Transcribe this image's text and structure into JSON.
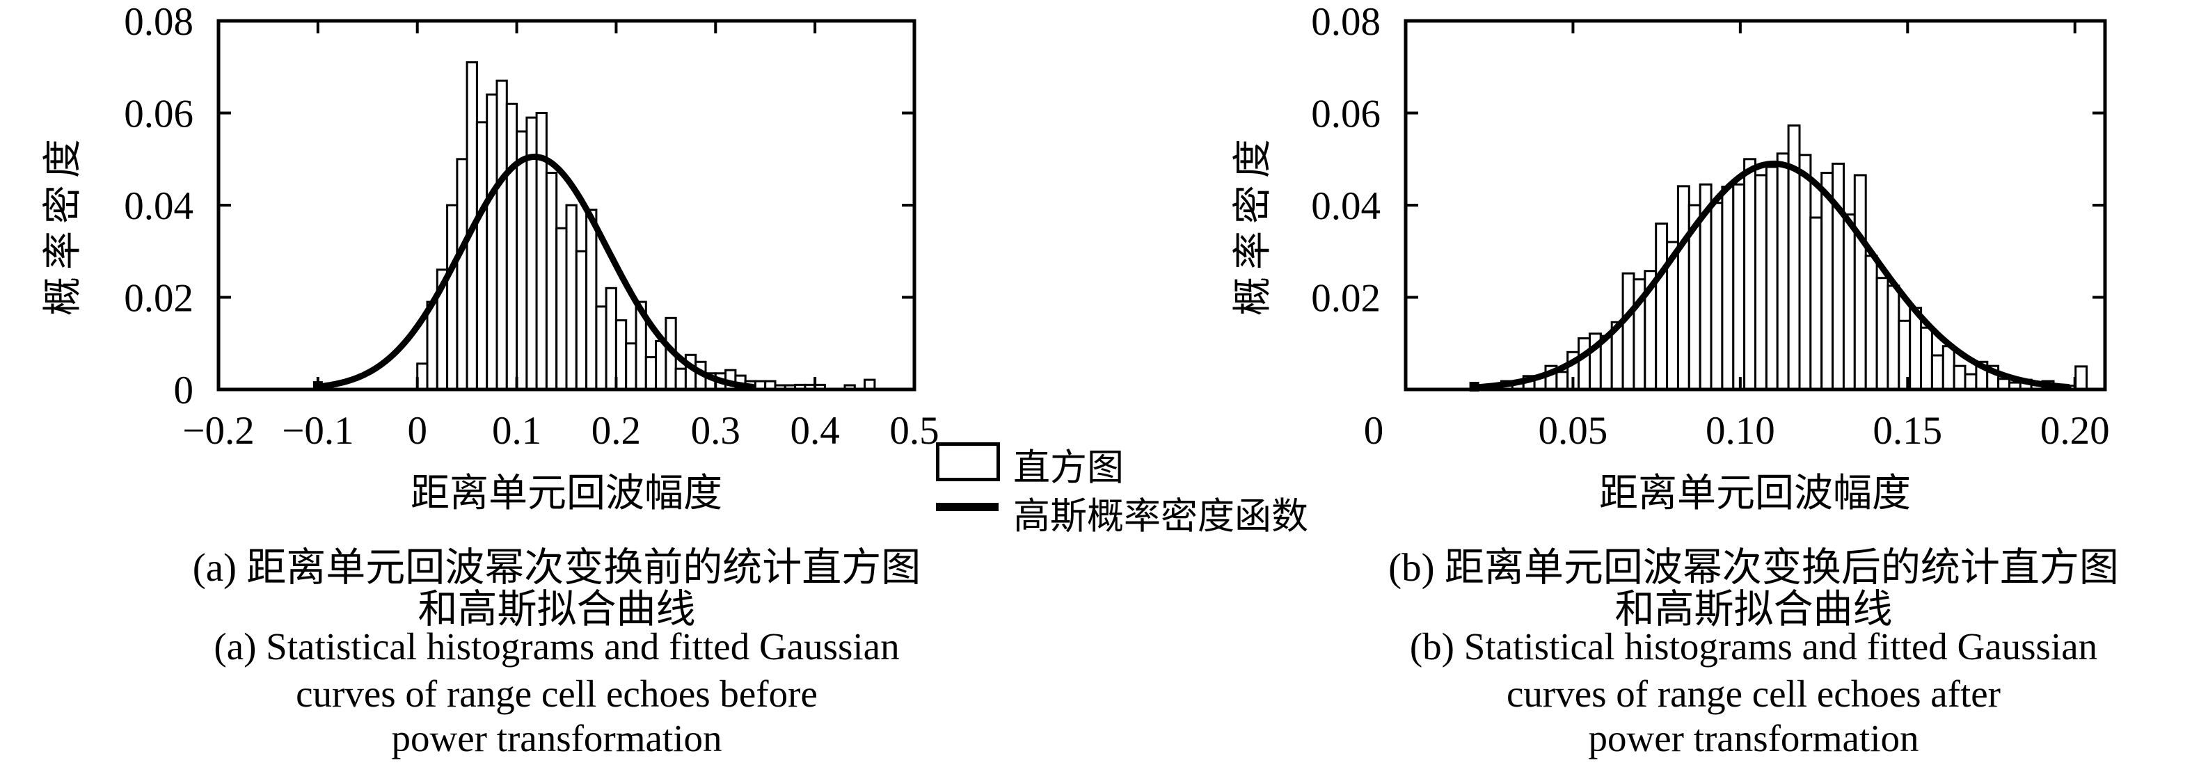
{
  "colors": {
    "ink": "#000000",
    "background": "#ffffff"
  },
  "legend": {
    "histogram_label": "直方图",
    "gaussian_label": "高斯概率密度函数"
  },
  "chart_data": [
    {
      "id": "a",
      "type": "bar",
      "subtype": "histogram-with-fitted-curve",
      "xlabel": "距离单元回波幅度",
      "ylabel": "概率密度",
      "xlim": [
        -0.2,
        0.5
      ],
      "ylim": [
        0,
        0.08
      ],
      "grid": false,
      "xticks": [
        {
          "v": -0.2,
          "label": "−0.2"
        },
        {
          "v": -0.1,
          "label": "−0.1"
        },
        {
          "v": 0,
          "label": "0"
        },
        {
          "v": 0.1,
          "label": "0.1"
        },
        {
          "v": 0.2,
          "label": "0.2"
        },
        {
          "v": 0.3,
          "label": "0.3"
        },
        {
          "v": 0.4,
          "label": "0.4"
        },
        {
          "v": 0.5,
          "label": "0.5"
        }
      ],
      "yticks": [
        {
          "v": 0,
          "label": "0"
        },
        {
          "v": 0.02,
          "label": "0.02"
        },
        {
          "v": 0.04,
          "label": "0.04"
        },
        {
          "v": 0.06,
          "label": "0.06"
        },
        {
          "v": 0.08,
          "label": "0.08"
        }
      ],
      "histogram": {
        "bin_start": 0.0,
        "bin_width": 0.01,
        "heights": [
          0.0056,
          0.019,
          0.026,
          0.04,
          0.05,
          0.071,
          0.058,
          0.064,
          0.067,
          0.062,
          0.056,
          0.059,
          0.06,
          0.047,
          0.035,
          0.04,
          0.03,
          0.039,
          0.018,
          0.022,
          0.015,
          0.01,
          0.019,
          0.007,
          0.0105,
          0.0155,
          0.0045,
          0.0075,
          0.006,
          0.0035,
          0.0035,
          0.0042,
          0.003,
          0.0018,
          0.0018,
          0.0018,
          0.0009,
          0.0009,
          0.001,
          0.001,
          0.001,
          0,
          0,
          0.0009,
          0,
          0.0021
        ]
      },
      "gaussian_fit": {
        "mu": 0.118,
        "sigma": 0.073,
        "peak": 0.0505,
        "x_start": -0.1,
        "x_end": 0.337
      },
      "caption_zh": [
        "(a) 距离单元回波幂次变换前的统计直方图",
        "和高斯拟合曲线"
      ],
      "caption_en": [
        "(a) Statistical histograms and fitted Gaussian",
        "curves of range cell echoes before",
        "power transformation"
      ]
    },
    {
      "id": "b",
      "type": "bar",
      "subtype": "histogram-with-fitted-curve",
      "xlabel": "距离单元回波幅度",
      "ylabel": "概率密度",
      "xlim": [
        0,
        0.209
      ],
      "ylim": [
        0,
        0.08
      ],
      "grid": false,
      "xticks": [
        {
          "v": 0,
          "label": "0",
          "label_dx": -46
        },
        {
          "v": 0.05,
          "label": "0.05"
        },
        {
          "v": 0.1,
          "label": "0.10"
        },
        {
          "v": 0.15,
          "label": "0.15"
        },
        {
          "v": 0.2,
          "label": "0.20"
        }
      ],
      "yticks": [
        {
          "v": 0.02,
          "label": "0.02"
        },
        {
          "v": 0.04,
          "label": "0.04"
        },
        {
          "v": 0.06,
          "label": "0.06"
        },
        {
          "v": 0.08,
          "label": "0.08"
        }
      ],
      "histogram": {
        "bin_start": 0.022,
        "bin_width": 0.0033,
        "heights": [
          0.0008,
          0.001,
          0.0018,
          0.0013,
          0.0029,
          0.0029,
          0.0051,
          0.0038,
          0.0081,
          0.0111,
          0.0121,
          0.0116,
          0.0146,
          0.0252,
          0.0239,
          0.0257,
          0.036,
          0.032,
          0.0441,
          0.04,
          0.0445,
          0.0405,
          0.044,
          0.0445,
          0.05,
          0.0465,
          0.0483,
          0.0512,
          0.0573,
          0.0509,
          0.0373,
          0.047,
          0.049,
          0.038,
          0.0465,
          0.029,
          0.0242,
          0.0225,
          0.0149,
          0.0177,
          0.0134,
          0.0074,
          0.0094,
          0.0051,
          0.0033,
          0.006,
          0.0051,
          0.0023,
          0.0015,
          0.0021,
          0.0011,
          0.0018,
          0.0008,
          0.0008,
          0.005
        ]
      },
      "gaussian_fit": {
        "mu": 0.11,
        "sigma": 0.0292,
        "peak": 0.049,
        "x_start": 0.0205,
        "x_end": 0.198
      },
      "caption_zh": [
        "(b) 距离单元回波幂次变换后的统计直方图",
        "和高斯拟合曲线"
      ],
      "caption_en": [
        "(b) Statistical histograms and fitted Gaussian",
        "curves of range cell echoes after",
        "power transformation"
      ]
    }
  ]
}
